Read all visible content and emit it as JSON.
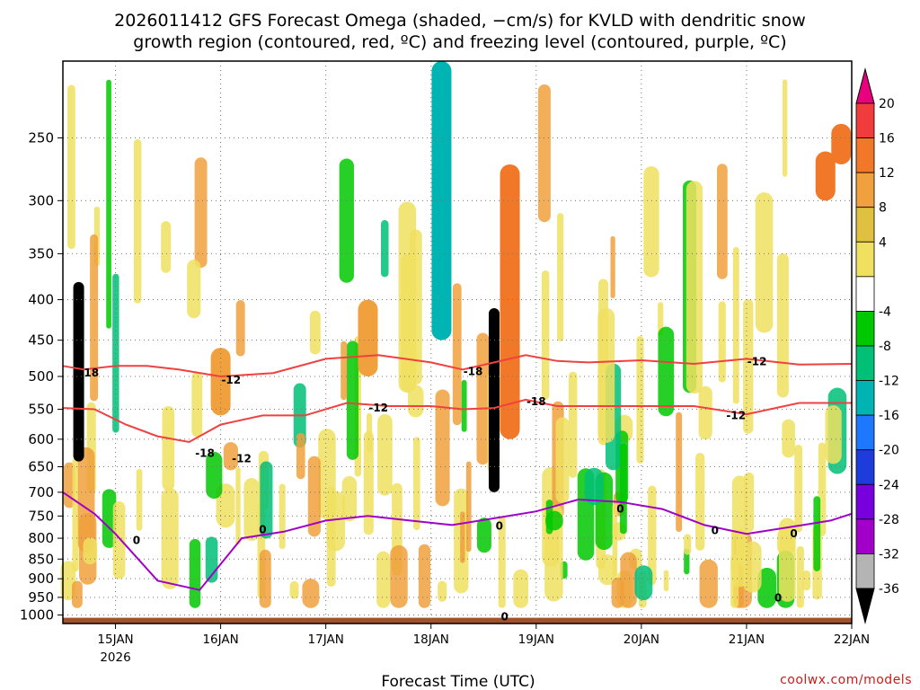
{
  "chart_data": {
    "type": "heatmap",
    "title_line1": "2026011412 GFS Forecast Omega (shaded, −cm/s) for KVLD with dendritic snow",
    "title_line2": "growth region (contoured, red, ºC) and freezing level (contoured, purple, ºC)",
    "xlabel": "Forecast Time (UTC)",
    "x_ticks": [
      "15JAN",
      "16JAN",
      "17JAN",
      "18JAN",
      "19JAN",
      "20JAN",
      "21JAN",
      "22JAN"
    ],
    "x_tick_year": "2026",
    "x_range_days": [
      14.5,
      22.0
    ],
    "y_ticks": [
      "250",
      "300",
      "350",
      "400",
      "450",
      "500",
      "550",
      "600",
      "650",
      "700",
      "750",
      "800",
      "850",
      "900",
      "950",
      "1000"
    ],
    "y_range_hpa": [
      200,
      1025
    ],
    "colorbar_labels": [
      "20",
      "16",
      "12",
      "8",
      "4",
      "-4",
      "-8",
      "-12",
      "-16",
      "-20",
      "-24",
      "-28",
      "-32",
      "-36"
    ],
    "colorbar_colors": [
      "#e8007e",
      "#f03c3c",
      "#f07828",
      "#f0a03c",
      "#e0c040",
      "#f0e060",
      "#ffffff",
      "#00c800",
      "#00c078",
      "#00b4b4",
      "#1e78ff",
      "#1e3cdc",
      "#7800dc",
      "#a000c8",
      "#b4b4b4",
      "#000000"
    ],
    "red_contour_labels": [
      "-18",
      "-12",
      "-18",
      "-12",
      "-18",
      "-12",
      "-18",
      "-12",
      "-12"
    ],
    "purple_contour_labels": [
      "0",
      "0",
      "0",
      "0",
      "0",
      "0",
      "0",
      "0"
    ],
    "series": [
      {
        "name": "-18C isotherm (hPa)",
        "x": [
          14.5,
          14.7,
          15.0,
          15.3,
          15.6,
          16.0,
          16.5,
          17.0,
          17.5,
          18.0,
          18.3,
          18.6,
          18.9,
          19.2,
          19.5,
          20.0,
          20.5,
          21.0,
          21.5,
          22.0
        ],
        "values": [
          485,
          490,
          485,
          485,
          490,
          500,
          495,
          475,
          470,
          480,
          490,
          480,
          470,
          478,
          480,
          477,
          482,
          475,
          483,
          482
        ]
      },
      {
        "name": "-12C isotherm (hPa)",
        "x": [
          14.5,
          14.8,
          15.1,
          15.4,
          15.7,
          16.0,
          16.4,
          16.8,
          17.2,
          17.6,
          18.0,
          18.3,
          18.6,
          18.9,
          19.2,
          19.5,
          20.0,
          20.5,
          21.0,
          21.5,
          22.0
        ],
        "values": [
          548,
          550,
          575,
          595,
          605,
          575,
          560,
          560,
          540,
          545,
          545,
          550,
          548,
          535,
          545,
          545,
          545,
          545,
          558,
          540,
          540
        ]
      },
      {
        "name": "freezing level 0C (hPa)",
        "x": [
          14.5,
          14.8,
          15.0,
          15.4,
          15.8,
          16.2,
          16.6,
          17.0,
          17.4,
          17.8,
          18.2,
          18.6,
          19.0,
          19.4,
          19.8,
          20.2,
          20.6,
          21.0,
          21.4,
          21.8,
          22.0
        ],
        "values": [
          700,
          745,
          790,
          905,
          930,
          800,
          785,
          760,
          750,
          760,
          770,
          755,
          740,
          715,
          720,
          735,
          770,
          790,
          775,
          760,
          745
        ]
      }
    ],
    "omega_features": [
      {
        "x": 14.65,
        "p_top": 380,
        "p_bottom": 640,
        "value": -36
      },
      {
        "x": 18.6,
        "p_top": 410,
        "p_bottom": 700,
        "value": -36
      },
      {
        "x": 18.75,
        "p_top": 270,
        "p_bottom": 600,
        "value": 12
      },
      {
        "x": 16.0,
        "p_top": 460,
        "p_bottom": 560,
        "value": 8
      },
      {
        "x": 17.4,
        "p_top": 400,
        "p_bottom": 500,
        "value": 8
      },
      {
        "x": 21.75,
        "p_top": 260,
        "p_bottom": 300,
        "value": 12
      },
      {
        "x": 21.9,
        "p_top": 240,
        "p_bottom": 270,
        "value": 12
      },
      {
        "x": 18.1,
        "p_top": 200,
        "p_bottom": 450,
        "value": -12
      }
    ],
    "grid": true
  },
  "credit": "coolwx.com/models"
}
